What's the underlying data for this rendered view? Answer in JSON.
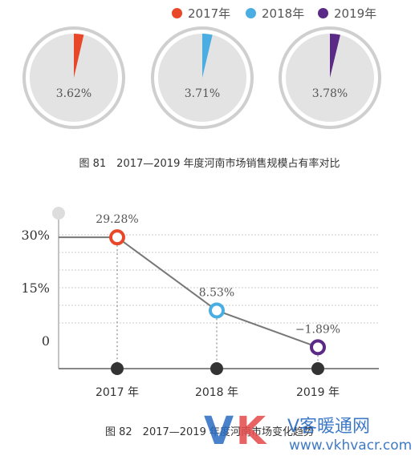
{
  "legend": [
    {
      "label": "2017年",
      "color": "#e8472a"
    },
    {
      "label": "2018年",
      "color": "#4aaee2"
    },
    {
      "label": "2019年",
      "color": "#5b2a86"
    }
  ],
  "captions": {
    "fig81": "图 81　2017—2019 年度河南市场销售规模占有率对比",
    "fig82": "图 82　2017—2019 年度河南市场变化趋势"
  },
  "watermark": {
    "logo_v": "V",
    "logo_k": "K",
    "name": "V客暖通网",
    "url": "www.vkhvacr.com"
  },
  "chart_data": [
    {
      "type": "pie",
      "title": "图 81　2017—2019 年度河南市场销售规模占有率对比",
      "unit": "%",
      "series": [
        {
          "name": "2017年",
          "value": 3.62,
          "label": "3.62%",
          "color": "#e8472a"
        },
        {
          "name": "2018年",
          "value": 3.71,
          "label": "3.71%",
          "color": "#4aaee2"
        },
        {
          "name": "2019年",
          "value": 3.78,
          "label": "3.78%",
          "color": "#5b2a86"
        }
      ]
    },
    {
      "type": "line",
      "title": "图 82　2017—2019 年度河南市场变化趋势",
      "categories": [
        "2017 年",
        "2018 年",
        "2019 年"
      ],
      "values": [
        29.28,
        8.53,
        -1.89
      ],
      "point_labels": [
        "29.28%",
        "8.53%",
        "−1.89%"
      ],
      "point_colors": [
        "#e8472a",
        "#4aaee2",
        "#5b2a86"
      ],
      "y_ticks": [
        {
          "value": 30,
          "label": "30%"
        },
        {
          "value": 15,
          "label": "15%"
        },
        {
          "value": 0,
          "label": "0"
        }
      ],
      "ylim": [
        -8,
        36
      ],
      "grid": true
    }
  ]
}
